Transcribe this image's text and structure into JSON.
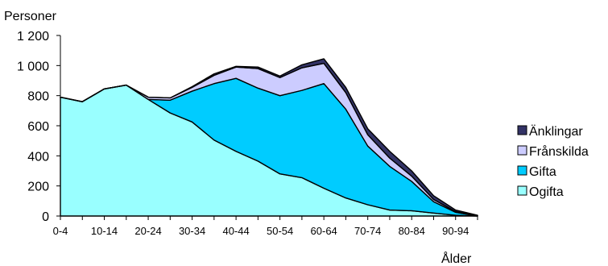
{
  "chart_data": {
    "type": "area",
    "stacked": true,
    "ylabel": "Personer",
    "xlabel": "Ålder",
    "ylim": [
      0,
      1200
    ],
    "yticks": [
      0,
      200,
      400,
      600,
      800,
      1000,
      1200
    ],
    "ytick_labels": [
      "0",
      "200",
      "400",
      "600",
      "800",
      "1 000",
      "1 200"
    ],
    "categories": [
      "0-4",
      "5-9",
      "10-14",
      "15-19",
      "20-24",
      "25-29",
      "30-34",
      "35-39",
      "40-44",
      "45-49",
      "50-54",
      "55-59",
      "60-64",
      "65-69",
      "70-74",
      "75-79",
      "80-84",
      "85-89",
      "90-94",
      "95-"
    ],
    "x_tick_labels": [
      "0-4",
      "10-14",
      "20-24",
      "30-34",
      "40-44",
      "50-54",
      "60-64",
      "70-74",
      "80-84",
      "90-94"
    ],
    "legend_position": "right",
    "grid": false,
    "series": [
      {
        "name": "Ogifta",
        "color": "#99FFFF",
        "values": [
          790,
          760,
          845,
          870,
          775,
          685,
          625,
          505,
          430,
          365,
          280,
          255,
          185,
          120,
          75,
          40,
          35,
          20,
          5,
          0
        ]
      },
      {
        "name": "Gifta",
        "color": "#00CCFF",
        "values": [
          0,
          0,
          0,
          0,
          0,
          85,
          205,
          375,
          485,
          485,
          520,
          580,
          695,
          590,
          390,
          290,
          195,
          75,
          20,
          0
        ]
      },
      {
        "name": "Frånskilda",
        "color": "#CCCCFF",
        "values": [
          0,
          0,
          0,
          0,
          15,
          15,
          25,
          55,
          75,
          130,
          120,
          150,
          135,
          110,
          75,
          55,
          35,
          15,
          5,
          0
        ]
      },
      {
        "name": "Änklingar",
        "color": "#333366",
        "values": [
          0,
          0,
          0,
          0,
          0,
          0,
          5,
          10,
          5,
          10,
          10,
          20,
          30,
          35,
          40,
          45,
          35,
          25,
          10,
          5
        ]
      }
    ]
  }
}
